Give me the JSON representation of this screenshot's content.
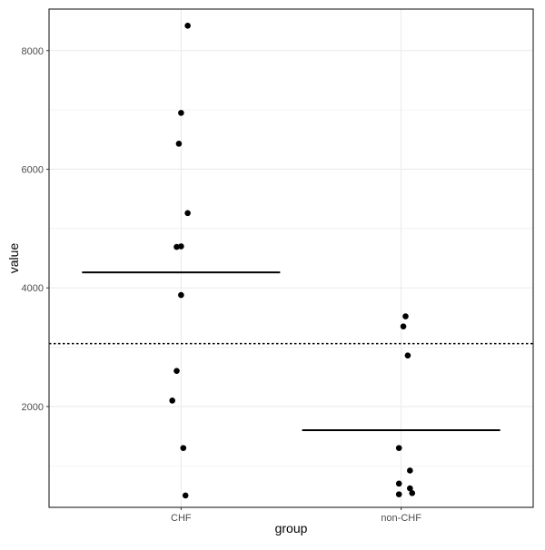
{
  "chart_data": {
    "type": "scatter",
    "xlabel": "group",
    "ylabel": "value",
    "categories": [
      "CHF",
      "non-CHF"
    ],
    "ylim": [
      300,
      8700
    ],
    "y_ticks": [
      2000,
      4000,
      6000,
      8000
    ],
    "grid": true,
    "series": [
      {
        "category": "CHF",
        "points": [
          {
            "x": 0.03,
            "y": 8420
          },
          {
            "x": 0.0,
            "y": 6950
          },
          {
            "x": -0.01,
            "y": 6430
          },
          {
            "x": 0.03,
            "y": 5260
          },
          {
            "x": -0.02,
            "y": 4690
          },
          {
            "x": 0.0,
            "y": 4700
          },
          {
            "x": 0.0,
            "y": 3880
          },
          {
            "x": -0.02,
            "y": 2600
          },
          {
            "x": -0.04,
            "y": 2100
          },
          {
            "x": 0.01,
            "y": 1300
          },
          {
            "x": 0.02,
            "y": 500
          }
        ],
        "mean": 4260
      },
      {
        "category": "non-CHF",
        "points": [
          {
            "x": 0.02,
            "y": 3520
          },
          {
            "x": 0.01,
            "y": 3350
          },
          {
            "x": 0.03,
            "y": 2860
          },
          {
            "x": -0.01,
            "y": 1300
          },
          {
            "x": 0.04,
            "y": 920
          },
          {
            "x": -0.01,
            "y": 700
          },
          {
            "x": 0.04,
            "y": 620
          },
          {
            "x": -0.01,
            "y": 520
          },
          {
            "x": 0.05,
            "y": 540
          }
        ],
        "mean": 1600
      }
    ],
    "overall_mean": 3060,
    "colors": {
      "points": "#000000",
      "mean_line": "#000000",
      "grid": "#ebebeb",
      "panel_border": "#333333"
    }
  }
}
